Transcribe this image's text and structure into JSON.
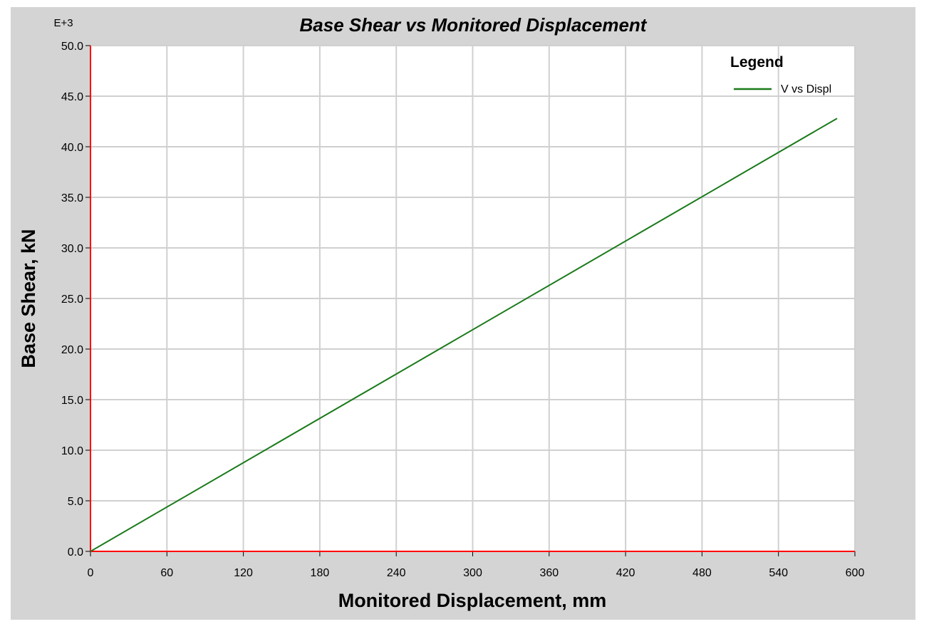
{
  "chart_data": {
    "type": "line",
    "title": "Base Shear vs Monitored Displacement",
    "xlabel": "Monitored Displacement, mm",
    "ylabel": "Base Shear, kN",
    "y_multiplier_label": "E+3",
    "xlim": [
      0,
      600
    ],
    "ylim": [
      0,
      50
    ],
    "x_ticks": [
      "0",
      "60",
      "120",
      "180",
      "240",
      "300",
      "360",
      "420",
      "480",
      "540",
      "600"
    ],
    "y_ticks": [
      "0.0",
      "5.0",
      "10.0",
      "15.0",
      "20.0",
      "25.0",
      "30.0",
      "35.0",
      "40.0",
      "45.0",
      "50.0"
    ],
    "grid": true,
    "legend": {
      "title": "Legend",
      "position": "top-right"
    },
    "series": [
      {
        "name": "V vs Displ",
        "color": "#1a7a1a",
        "x": [
          0,
          586
        ],
        "y": [
          0,
          42.8
        ]
      }
    ],
    "colors": {
      "background": "#d4d4d4",
      "plot_area": "#ffffff",
      "grid": "#d0d0d0",
      "axis": "#ff0000"
    }
  }
}
